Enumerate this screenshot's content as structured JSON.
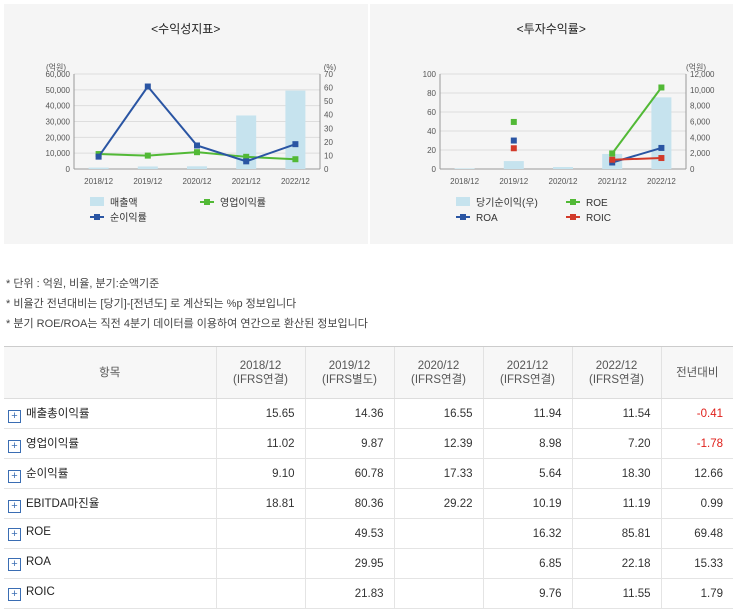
{
  "colors": {
    "bar": "#c6e3ee",
    "line_blue": "#2a55a3",
    "line_green": "#52b936",
    "line_red": "#d23a2a",
    "negative": "#e0201b"
  },
  "notes": [
    "* 단위 : 억원, 비율, 분기:순액기준",
    "* 비율간 전년대비는 [당기]-[전년도] 로 계산되는 %p 정보입니다",
    "* 분기 ROE/ROA는 직전 4분기 데이터를 이용하여 연간으로 환산된 정보입니다"
  ],
  "chart_data": [
    {
      "type": "bar+line",
      "title": "<수익성지표>",
      "left_unit": "(억원)",
      "right_unit": "(%)",
      "categories": [
        "2018/12",
        "2019/12",
        "2020/12",
        "2021/12",
        "2022/12"
      ],
      "left_ticks": [
        "0",
        "10,000",
        "20,000",
        "30,000",
        "40,000",
        "50,000",
        "60,000"
      ],
      "right_ticks": [
        "0",
        "10",
        "20",
        "30",
        "40",
        "50",
        "60",
        "70"
      ],
      "ylim_left": [
        0,
        60000
      ],
      "ylim_right": [
        0,
        70
      ],
      "bars": {
        "name": "매출액",
        "values": [
          900,
          1600,
          1700,
          33800,
          49500
        ]
      },
      "series": [
        {
          "name": "영업이익률",
          "color": "#52b936",
          "values": [
            11.02,
            9.87,
            12.39,
            8.98,
            7.2
          ]
        },
        {
          "name": "순이익률",
          "color": "#2a55a3",
          "values": [
            9.1,
            60.78,
            17.33,
            5.64,
            18.3
          ]
        }
      ],
      "legend": [
        "매출액",
        "영업이익률",
        "순이익률"
      ]
    },
    {
      "type": "bar+line",
      "title": "<투자수익률>",
      "left_unit": "",
      "right_unit": "(억원)",
      "categories": [
        "2018/12",
        "2019/12",
        "2020/12",
        "2021/12",
        "2022/12"
      ],
      "left_ticks": [
        "0",
        "20",
        "40",
        "60",
        "80",
        "100"
      ],
      "right_ticks": [
        "0",
        "2,000",
        "4,000",
        "6,000",
        "8,000",
        "10,000",
        "12,000"
      ],
      "ylim_left": [
        0,
        100
      ],
      "ylim_right": [
        0,
        12000
      ],
      "bars": {
        "name": "당기순이익(우)",
        "values": [
          80,
          1000,
          250,
          1900,
          9050
        ]
      },
      "series": [
        {
          "name": "ROE",
          "color": "#52b936",
          "values": [
            null,
            49.53,
            null,
            16.32,
            85.81
          ]
        },
        {
          "name": "ROA",
          "color": "#2a55a3",
          "values": [
            null,
            29.95,
            null,
            6.85,
            22.18
          ]
        },
        {
          "name": "ROIC",
          "color": "#d23a2a",
          "values": [
            null,
            21.83,
            null,
            9.76,
            11.55
          ]
        }
      ],
      "legend": [
        "당기순이익(우)",
        "ROE",
        "ROA",
        "ROIC"
      ]
    }
  ],
  "table": {
    "header_item": "항목",
    "columns": [
      {
        "year": "2018/12",
        "basis": "(IFRS연결)"
      },
      {
        "year": "2019/12",
        "basis": "(IFRS별도)"
      },
      {
        "year": "2020/12",
        "basis": "(IFRS연결)"
      },
      {
        "year": "2021/12",
        "basis": "(IFRS연결)"
      },
      {
        "year": "2022/12",
        "basis": "(IFRS연결)"
      }
    ],
    "header_change": "전년대비",
    "expand_symbol": "+",
    "rows": [
      {
        "label": "매출총이익률",
        "values": [
          "15.65",
          "14.36",
          "16.55",
          "11.94",
          "11.54"
        ],
        "change": "-0.41"
      },
      {
        "label": "영업이익률",
        "values": [
          "11.02",
          "9.87",
          "12.39",
          "8.98",
          "7.20"
        ],
        "change": "-1.78"
      },
      {
        "label": "순이익률",
        "values": [
          "9.10",
          "60.78",
          "17.33",
          "5.64",
          "18.30"
        ],
        "change": "12.66"
      },
      {
        "label": "EBITDA마진율",
        "values": [
          "18.81",
          "80.36",
          "29.22",
          "10.19",
          "11.19"
        ],
        "change": "0.99"
      },
      {
        "label": "ROE",
        "values": [
          "",
          "49.53",
          "",
          "16.32",
          "85.81"
        ],
        "change": "69.48"
      },
      {
        "label": "ROA",
        "values": [
          "",
          "29.95",
          "",
          "6.85",
          "22.18"
        ],
        "change": "15.33"
      },
      {
        "label": "ROIC",
        "values": [
          "",
          "21.83",
          "",
          "9.76",
          "11.55"
        ],
        "change": "1.79"
      }
    ]
  }
}
